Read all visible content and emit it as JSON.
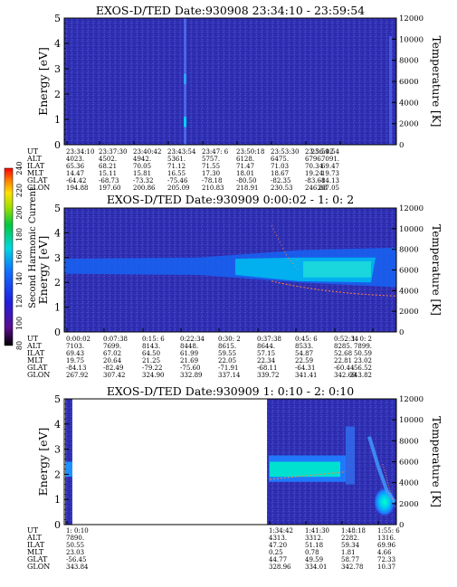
{
  "colors": {
    "background_low": "#2b2bb8",
    "mid": "#1f78ff",
    "high": "#00ffe0",
    "trace": "#ff8040"
  },
  "colorbar": {
    "label": "Second Harmonic Current",
    "ticks": [
      "80",
      "100",
      "120",
      "140",
      "160",
      "180",
      "200",
      "220",
      "240"
    ],
    "colors": [
      "#000000",
      "#5a0c8f",
      "#2020e0",
      "#1070ff",
      "#00d8e0",
      "#00c840",
      "#a0e000",
      "#ffe000",
      "#ff8000",
      "#ff0000"
    ]
  },
  "chart_data": [
    {
      "type": "heatmap",
      "title": "EXOS-D/TED   Date:930908  23:34:10 - 23:59:54",
      "ylabel": "Energy [eV]",
      "y2label": "Temperature [K]",
      "ylim": [
        0,
        5
      ],
      "y2lim": [
        0,
        12000
      ],
      "yticks": [
        "0",
        "1",
        "2",
        "3",
        "4",
        "5"
      ],
      "y2ticks": [
        "0",
        "2000",
        "4000",
        "6000",
        "8000",
        "10000",
        "12000"
      ],
      "row_labels": [
        "UT",
        "ALT",
        "ILAT",
        "MLT",
        "GLAT",
        "GLON"
      ],
      "columns": [
        [
          "23:34:10",
          "4023.",
          "65.36",
          "14.47",
          "-64.42",
          "194.88"
        ],
        [
          "23:37:30",
          "4502.",
          "68.21",
          "15.11",
          "-68.73",
          "197.60"
        ],
        [
          "23:40:42",
          "4942.",
          "70.05",
          "15.81",
          "-73.32",
          "200.86"
        ],
        [
          "23:43:54",
          "5361.",
          "71.12",
          "16.55",
          "-75.46",
          "205.09"
        ],
        [
          "23:47: 6",
          "5757.",
          "71.55",
          "17.30",
          "-78.18",
          "210.83"
        ],
        [
          "23:50:18",
          "6128.",
          "71.47",
          "18.01",
          "-80.50",
          "218.91"
        ],
        [
          "23:53:30",
          "6475.",
          "71.03",
          "18.67",
          "-82.35",
          "230.53"
        ],
        [
          "23:56:42",
          "6796.",
          "70.34",
          "19.24",
          "-83.61",
          "246.88"
        ],
        [
          "23:59:54",
          "7091.",
          "69.47",
          "19.73",
          "-84.13",
          "267.05"
        ]
      ]
    },
    {
      "type": "heatmap",
      "title": "EXOS-D/TED   Date:930909  0:00:02 - 1: 0: 2",
      "ylabel": "Energy [eV]",
      "y2label": "Temperature [K]",
      "ylim": [
        0,
        5
      ],
      "y2lim": [
        0,
        12000
      ],
      "yticks": [
        "0",
        "1",
        "2",
        "3",
        "4",
        "5"
      ],
      "y2ticks": [
        "0",
        "2000",
        "4000",
        "6000",
        "8000",
        "10000",
        "12000"
      ],
      "row_labels": [
        "UT",
        "ALT",
        "ILAT",
        "MLT",
        "GLAT",
        "GLON"
      ],
      "columns": [
        [
          "0:00:02",
          "7103.",
          "69.43",
          "19.75",
          "-84.13",
          "267.92"
        ],
        [
          "0:07:38",
          "7699.",
          "67.02",
          "20.64",
          "-82.49",
          "307.42"
        ],
        [
          "0:15: 6",
          "8143.",
          "64.50",
          "21.25",
          "-79.22",
          "324.90"
        ],
        [
          "0:22:34",
          "8448.",
          "61.99",
          "21.69",
          "-75.60",
          "332.89"
        ],
        [
          "0:30: 2",
          "8615.",
          "59.55",
          "22.05",
          "-71.91",
          "337.14"
        ],
        [
          "0:37:38",
          "8644.",
          "57.15",
          "22.34",
          "-68.11",
          "339.72"
        ],
        [
          "0:45: 6",
          "8533.",
          "54.87",
          "22.59",
          "-64.31",
          "341.41"
        ],
        [
          "0:52:34",
          "8285.",
          "52.68",
          "22.81",
          "-60.44",
          "342.69"
        ],
        [
          "1: 0: 2",
          "7899.",
          "50.59",
          "23.02",
          "-56.52",
          "343.82"
        ]
      ]
    },
    {
      "type": "heatmap",
      "title": "EXOS-D/TED   Date:930909  1: 0:10 - 2: 0:10",
      "ylabel": "Energy [eV]",
      "y2label": "Temperature [K]",
      "ylim": [
        0,
        5
      ],
      "y2lim": [
        0,
        12000
      ],
      "yticks": [
        "0",
        "1",
        "2",
        "3",
        "4",
        "5"
      ],
      "y2ticks": [
        "0",
        "2000",
        "4000",
        "6000",
        "8000",
        "10000",
        "12000"
      ],
      "row_labels": [
        "UT",
        "ALT",
        "ILAT",
        "MLT",
        "GLAT",
        "GLON"
      ],
      "columns": [
        [
          "1: 0:10",
          "7890.",
          "50.55",
          "23.03",
          "-56.45",
          "343.84"
        ],
        [
          "1:34:42",
          "4313.",
          "47.20",
          "0.25",
          "44.77",
          "328.96"
        ],
        [
          "1:41:30",
          "3312.",
          "51.18",
          "0.78",
          "49.59",
          "334.01"
        ],
        [
          "1:48:18",
          "2282.",
          "59.34",
          "1.81",
          "58.77",
          "342.78"
        ],
        [
          "1:55: 6",
          "1316.",
          "69.96",
          "4.66",
          "72.33",
          "10.37"
        ]
      ]
    }
  ]
}
